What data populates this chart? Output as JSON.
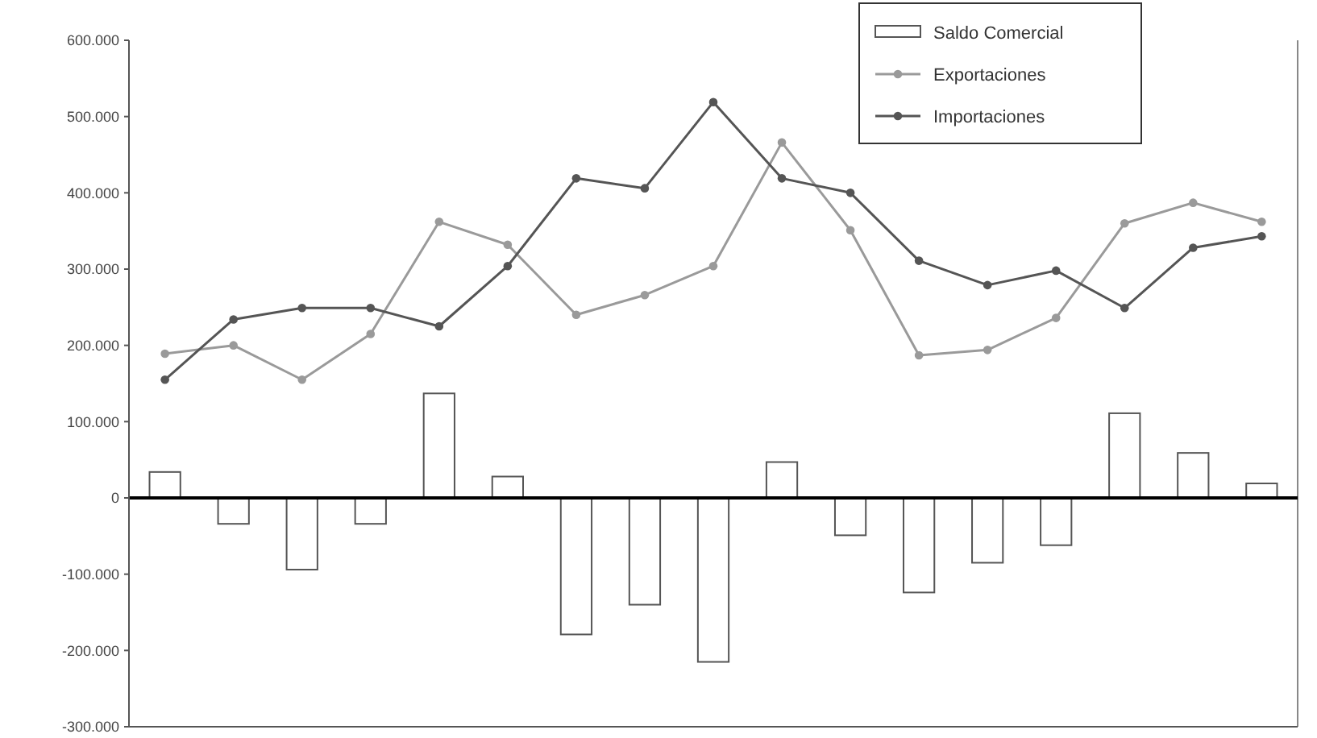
{
  "chart_data": {
    "type": "bar",
    "categories": [
      null,
      null,
      null,
      null,
      null,
      null,
      null,
      null,
      null,
      null,
      null,
      null,
      null,
      null,
      null,
      null,
      null
    ],
    "series": [
      {
        "name": "Saldo Comercial",
        "color": "#ffffff",
        "values": [
          34000,
          -34000,
          -94000,
          -34000,
          137000,
          28000,
          -179000,
          -140000,
          -215000,
          47000,
          -49000,
          -124000,
          -85000,
          -62000,
          111000,
          59000,
          19000
        ]
      },
      {
        "name": "Exportaciones",
        "type": "line",
        "color": "#9a9a9a",
        "values": [
          189000,
          200000,
          155000,
          215000,
          362000,
          332000,
          240000,
          266000,
          304000,
          466000,
          351000,
          187000,
          194000,
          236000,
          360000,
          387000,
          362000
        ]
      },
      {
        "name": "Importaciones",
        "type": "line",
        "color": "#555555",
        "values": [
          155000,
          234000,
          249000,
          249000,
          225000,
          304000,
          419000,
          406000,
          519000,
          419000,
          400000,
          311000,
          279000,
          298000,
          249000,
          328000,
          343000
        ]
      }
    ],
    "ylim": [
      -300000,
      600000
    ],
    "yticks": [
      {
        "value": -300000,
        "label": "-300.000"
      },
      {
        "value": -200000,
        "label": "-200.000"
      },
      {
        "value": -100000,
        "label": "-100.000"
      },
      {
        "value": 0,
        "label": "0"
      },
      {
        "value": 100000,
        "label": "100.000"
      },
      {
        "value": 200000,
        "label": "200.000"
      },
      {
        "value": 300000,
        "label": "300.000"
      },
      {
        "value": 400000,
        "label": "400.000"
      },
      {
        "value": 500000,
        "label": "500.000"
      },
      {
        "value": 600000,
        "label": "600.000"
      }
    ],
    "legend": "top right",
    "marker": "circle"
  }
}
